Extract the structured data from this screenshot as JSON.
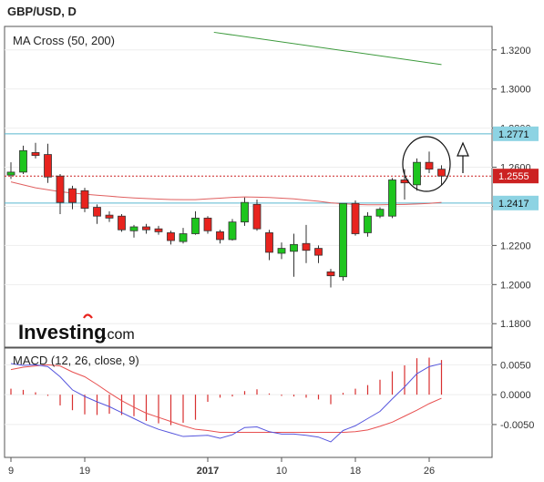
{
  "header": {
    "title": "GBP/USD, D"
  },
  "brand": {
    "name": "Investing",
    "suffix": ".com"
  },
  "colors": {
    "up": "#1ec51e",
    "down": "#e8231e",
    "ma_fast": "#e06060",
    "ma_slow": "#3c9a3c",
    "macd_line": "#5555dd",
    "signal_line": "#e85050",
    "hist": "#d83030",
    "level": "#59b8cf",
    "tag_bg": "#8dd3e3",
    "price_line": "#cc2222"
  },
  "chart_data": [
    {
      "type": "candlestick",
      "label": "MA Cross (50, 200)",
      "ylim": [
        1.168,
        1.332
      ],
      "y_ticks": [
        "1.3200",
        "1.3000",
        "1.2800",
        "1.2600",
        "1.2400",
        "1.2200",
        "1.2000",
        "1.1800"
      ],
      "x_ticks": [
        {
          "label": "9",
          "index": 0,
          "bold": false
        },
        {
          "label": "19",
          "index": 6,
          "bold": false
        },
        {
          "label": "2017",
          "index": 16,
          "bold": true
        },
        {
          "label": "10",
          "index": 22,
          "bold": false
        },
        {
          "label": "18",
          "index": 28,
          "bold": false
        },
        {
          "label": "26",
          "index": 34,
          "bold": false
        }
      ],
      "candles": [
        {
          "o": 1.256,
          "h": 1.2625,
          "l": 1.254,
          "c": 1.2575
        },
        {
          "o": 1.2575,
          "h": 1.271,
          "l": 1.2565,
          "c": 1.2685
        },
        {
          "o": 1.2675,
          "h": 1.2725,
          "l": 1.2645,
          "c": 1.266
        },
        {
          "o": 1.2665,
          "h": 1.272,
          "l": 1.252,
          "c": 1.255
        },
        {
          "o": 1.2555,
          "h": 1.2565,
          "l": 1.236,
          "c": 1.242
        },
        {
          "o": 1.249,
          "h": 1.2505,
          "l": 1.2385,
          "c": 1.242
        },
        {
          "o": 1.248,
          "h": 1.2495,
          "l": 1.237,
          "c": 1.239
        },
        {
          "o": 1.2395,
          "h": 1.241,
          "l": 1.231,
          "c": 1.235
        },
        {
          "o": 1.2355,
          "h": 1.2375,
          "l": 1.232,
          "c": 1.234
        },
        {
          "o": 1.235,
          "h": 1.236,
          "l": 1.227,
          "c": 1.228
        },
        {
          "o": 1.2275,
          "h": 1.2305,
          "l": 1.224,
          "c": 1.2295
        },
        {
          "o": 1.2295,
          "h": 1.231,
          "l": 1.226,
          "c": 1.228
        },
        {
          "o": 1.2285,
          "h": 1.23,
          "l": 1.2255,
          "c": 1.227
        },
        {
          "o": 1.2265,
          "h": 1.2275,
          "l": 1.2205,
          "c": 1.2225
        },
        {
          "o": 1.222,
          "h": 1.229,
          "l": 1.221,
          "c": 1.226
        },
        {
          "o": 1.226,
          "h": 1.2375,
          "l": 1.2255,
          "c": 1.234
        },
        {
          "o": 1.234,
          "h": 1.235,
          "l": 1.226,
          "c": 1.2275
        },
        {
          "o": 1.227,
          "h": 1.228,
          "l": 1.221,
          "c": 1.223
        },
        {
          "o": 1.223,
          "h": 1.2335,
          "l": 1.2225,
          "c": 1.232
        },
        {
          "o": 1.232,
          "h": 1.2445,
          "l": 1.23,
          "c": 1.242
        },
        {
          "o": 1.241,
          "h": 1.2435,
          "l": 1.2275,
          "c": 1.2285
        },
        {
          "o": 1.2265,
          "h": 1.228,
          "l": 1.2125,
          "c": 1.2165
        },
        {
          "o": 1.216,
          "h": 1.2215,
          "l": 1.213,
          "c": 1.2185
        },
        {
          "o": 1.217,
          "h": 1.226,
          "l": 1.204,
          "c": 1.2205
        },
        {
          "o": 1.221,
          "h": 1.2305,
          "l": 1.211,
          "c": 1.2175
        },
        {
          "o": 1.2185,
          "h": 1.22,
          "l": 1.211,
          "c": 1.215
        },
        {
          "o": 1.2065,
          "h": 1.208,
          "l": 1.1985,
          "c": 1.2045
        },
        {
          "o": 1.204,
          "h": 1.2415,
          "l": 1.202,
          "c": 1.2415
        },
        {
          "o": 1.2415,
          "h": 1.243,
          "l": 1.225,
          "c": 1.226
        },
        {
          "o": 1.2265,
          "h": 1.237,
          "l": 1.2245,
          "c": 1.235
        },
        {
          "o": 1.235,
          "h": 1.2395,
          "l": 1.234,
          "c": 1.2385
        },
        {
          "o": 1.235,
          "h": 1.2545,
          "l": 1.234,
          "c": 1.2535
        },
        {
          "o": 1.2535,
          "h": 1.259,
          "l": 1.2435,
          "c": 1.252
        },
        {
          "o": 1.251,
          "h": 1.2645,
          "l": 1.248,
          "c": 1.2625
        },
        {
          "o": 1.2625,
          "h": 1.268,
          "l": 1.257,
          "c": 1.259
        },
        {
          "o": 1.259,
          "h": 1.261,
          "l": 1.251,
          "c": 1.2555
        }
      ],
      "ma_fast": [
        1.2525,
        1.251,
        1.2495,
        1.2485,
        1.2475,
        1.2468,
        1.2462,
        1.2457,
        1.2452,
        1.2447,
        1.2443,
        1.244,
        1.2437,
        1.2435,
        1.2434,
        1.2434,
        1.2438,
        1.2442,
        1.2446,
        1.2448,
        1.2447,
        1.2445,
        1.2442,
        1.2438,
        1.2432,
        1.2426,
        1.2418,
        1.2413,
        1.241,
        1.2408,
        1.2408,
        1.2409,
        1.241,
        1.2412,
        1.2415,
        1.242
      ],
      "ma_slow": {
        "start_index": 16.5,
        "end_index": 35,
        "start": 1.329,
        "end": 1.3125
      },
      "levels": [
        {
          "value": 1.2771,
          "label": "1.2771",
          "style": "line"
        },
        {
          "value": 1.2555,
          "label": "1.2555",
          "style": "price"
        },
        {
          "value": 1.2417,
          "label": "1.2417",
          "style": "line"
        }
      ]
    },
    {
      "type": "macd",
      "label": "MACD (12, 26, close, 9)",
      "ylim": [
        -0.0105,
        0.0078
      ],
      "y_ticks": [
        "0.0050",
        "0.0000",
        "-0.0050"
      ],
      "macd": [
        0.0052,
        0.0049,
        0.005,
        0.0047,
        0.003,
        0.0008,
        -0.0003,
        -0.0012,
        -0.002,
        -0.003,
        -0.004,
        -0.005,
        -0.0058,
        -0.0064,
        -0.007,
        -0.0069,
        -0.0068,
        -0.0073,
        -0.0067,
        -0.0055,
        -0.0054,
        -0.0062,
        -0.0066,
        -0.0066,
        -0.0068,
        -0.0071,
        -0.0079,
        -0.006,
        -0.0052,
        -0.004,
        -0.0028,
        -0.0007,
        0.0013,
        0.0035,
        0.0047,
        0.0052
      ],
      "signal": [
        0.0042,
        0.0046,
        0.0048,
        0.005,
        0.0048,
        0.0038,
        0.003,
        0.0017,
        0.0003,
        -0.001,
        -0.0021,
        -0.0031,
        -0.0038,
        -0.0045,
        -0.0052,
        -0.0058,
        -0.006,
        -0.0063,
        -0.0063,
        -0.0063,
        -0.0063,
        -0.0063,
        -0.0063,
        -0.0063,
        -0.0063,
        -0.0063,
        -0.0063,
        -0.0063,
        -0.0062,
        -0.0059,
        -0.0053,
        -0.0046,
        -0.0036,
        -0.0026,
        -0.0015,
        -0.0006
      ],
      "hist": [
        0.001,
        0.0008,
        0.0004,
        -0.0002,
        -0.0018,
        -0.0026,
        -0.0033,
        -0.0034,
        -0.0032,
        -0.0034,
        -0.0036,
        -0.0044,
        -0.0048,
        -0.0051,
        -0.0047,
        -0.0042,
        -0.0012,
        -0.0005,
        -0.0003,
        0.0006,
        0.0009,
        0.0002,
        -0.0002,
        -0.0003,
        -0.0005,
        -0.0008,
        -0.0016,
        0.0003,
        0.001,
        0.0016,
        0.0025,
        0.0039,
        0.0049,
        0.0061,
        0.0062,
        0.0058
      ]
    }
  ]
}
